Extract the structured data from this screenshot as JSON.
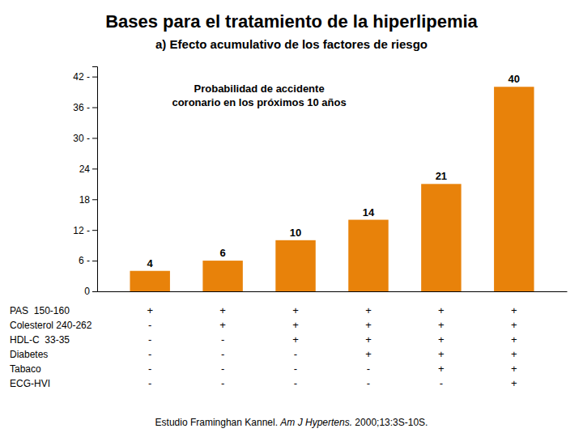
{
  "chart_data": {
    "type": "bar",
    "title": "Bases para el tratamiento de la hiperlipemia",
    "subtitle": "a) Efecto acumulativo de los factores de riesgo",
    "categories": [
      null,
      null,
      null,
      null,
      null,
      null
    ],
    "values": [
      4,
      6,
      10,
      14,
      21,
      40
    ],
    "color": "#E8820A",
    "data_labels": true,
    "grid": false,
    "ylim": [
      0,
      44
    ],
    "yticks": [
      0,
      {
        "value": 6,
        "label": "6 -"
      },
      {
        "value": 12,
        "label": "12 -"
      },
      18,
      24,
      {
        "value": 30,
        "label": "30 -"
      },
      {
        "value": 36,
        "label": "36 -"
      },
      {
        "value": 42,
        "label": "42 -"
      }
    ],
    "annotation": "Probabilidad de accidente\ncoronario en los próximos 10 años",
    "table_rows": [
      [
        "PAS  150-160",
        "+",
        "+",
        "+",
        "+",
        "+",
        "+"
      ],
      [
        "Colesterol 240-262",
        "-",
        "+",
        "+",
        "+",
        "+",
        "+"
      ],
      [
        "HDL-C  33-35",
        "-",
        "-",
        "+",
        "+",
        "+",
        "+"
      ],
      [
        "Diabetes",
        "-",
        "-",
        "-",
        "+",
        "+",
        "+"
      ],
      [
        "Tabaco",
        "-",
        "-",
        "-",
        "-",
        "+",
        "+"
      ],
      [
        "ECG-HVI",
        "-",
        "-",
        "-",
        "-",
        "-",
        "+"
      ]
    ],
    "footer": [
      {
        "text": "Estudio Framinghan Kannel. ",
        "style": "normal"
      },
      {
        "text": "Am J Hypertens.",
        "style": "italic"
      },
      {
        "text": " 2000;13:3S-10S.",
        "style": "normal"
      }
    ]
  }
}
